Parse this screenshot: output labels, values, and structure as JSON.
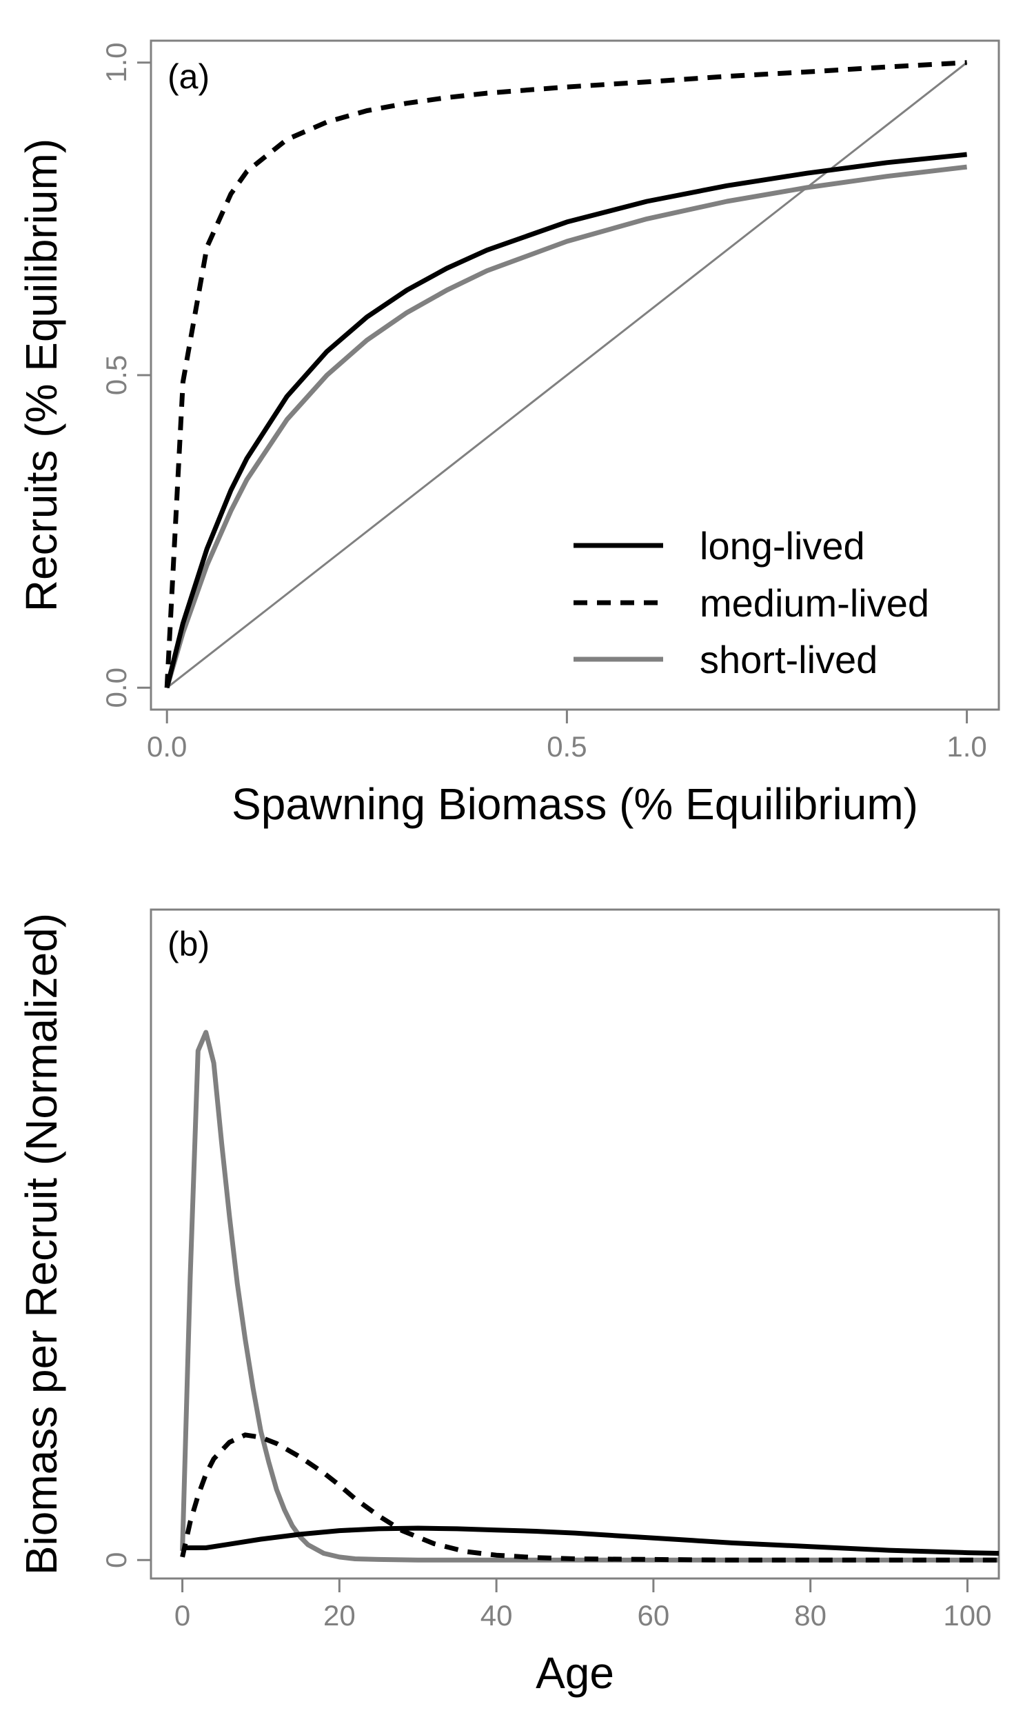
{
  "chart_data": [
    {
      "panel": "(a)",
      "type": "line",
      "xlabel": "Spawning Biomass (% Equilibrium)",
      "ylabel": "Recruits (% Equilibrium)",
      "xlim": [
        -0.02,
        1.04
      ],
      "ylim": [
        -0.035,
        1.035
      ],
      "xticks": [
        0.0,
        0.5,
        1.0
      ],
      "xtick_labels": [
        "0.0",
        "0.5",
        "1.0"
      ],
      "yticks": [
        0.0,
        0.5,
        1.0
      ],
      "ytick_labels": [
        "0.0",
        "0.5",
        "1.0"
      ],
      "legend_position": "bottom-right",
      "series": [
        {
          "name": "long-lived",
          "color": "#000000",
          "style": "solid",
          "x": [
            0,
            0.02,
            0.05,
            0.08,
            0.1,
            0.15,
            0.2,
            0.25,
            0.3,
            0.35,
            0.4,
            0.5,
            0.6,
            0.7,
            0.8,
            0.9,
            1.0
          ],
          "y": [
            0,
            0.103,
            0.222,
            0.316,
            0.367,
            0.466,
            0.538,
            0.593,
            0.636,
            0.671,
            0.7,
            0.745,
            0.778,
            0.803,
            0.823,
            0.84,
            0.853
          ]
        },
        {
          "name": "medium-lived",
          "color": "#000000",
          "style": "dashed",
          "x": [
            0,
            0.02,
            0.05,
            0.08,
            0.1,
            0.15,
            0.2,
            0.25,
            0.3,
            0.35,
            0.4,
            0.5,
            0.6,
            0.7,
            0.8,
            0.9,
            1.0
          ],
          "y": [
            0,
            0.489,
            0.705,
            0.79,
            0.826,
            0.877,
            0.905,
            0.923,
            0.935,
            0.944,
            0.951,
            0.961,
            0.969,
            0.978,
            0.985,
            0.993,
            1.0
          ]
        },
        {
          "name": "short-lived",
          "color": "#808080",
          "style": "solid",
          "x": [
            0,
            0.02,
            0.05,
            0.08,
            0.1,
            0.15,
            0.2,
            0.25,
            0.3,
            0.35,
            0.4,
            0.5,
            0.6,
            0.7,
            0.8,
            0.9,
            1.0
          ],
          "y": [
            0,
            0.088,
            0.196,
            0.283,
            0.333,
            0.429,
            0.5,
            0.556,
            0.6,
            0.636,
            0.667,
            0.714,
            0.75,
            0.778,
            0.8,
            0.818,
            0.833
          ]
        },
        {
          "name": "",
          "color": "#808080",
          "style": "thin",
          "x": [
            0,
            1.0
          ],
          "y": [
            0,
            1.0
          ]
        }
      ]
    },
    {
      "panel": "(b)",
      "type": "line",
      "xlabel": "Age",
      "ylabel": "Biomass per Recruit (Normalized)",
      "xlim": [
        -4,
        104
      ],
      "ylim": [
        -0.3,
        10.6
      ],
      "xticks": [
        0,
        20,
        40,
        60,
        80,
        100
      ],
      "xtick_labels": [
        "0",
        "20",
        "40",
        "60",
        "80",
        "100"
      ],
      "yticks": [
        0
      ],
      "ytick_labels": [
        "0"
      ],
      "series": [
        {
          "name": "long-lived",
          "color": "#000000",
          "style": "solid",
          "x": [
            0,
            1,
            3,
            6,
            10,
            15,
            20,
            25,
            30,
            35,
            40,
            45,
            50,
            55,
            60,
            65,
            70,
            80,
            90,
            100,
            104
          ],
          "y": [
            0.2,
            0.2,
            0.2,
            0.26,
            0.34,
            0.42,
            0.48,
            0.51,
            0.52,
            0.51,
            0.49,
            0.47,
            0.44,
            0.4,
            0.36,
            0.32,
            0.28,
            0.22,
            0.16,
            0.12,
            0.11
          ]
        },
        {
          "name": "medium-lived",
          "color": "#000000",
          "style": "dashed",
          "x": [
            0,
            1,
            2,
            3,
            4,
            6,
            8,
            10,
            12,
            15,
            18,
            20,
            22,
            25,
            28,
            32,
            36,
            40,
            45,
            50,
            60,
            70,
            80,
            90,
            104
          ],
          "y": [
            0.05,
            0.62,
            1.05,
            1.4,
            1.65,
            1.92,
            2.04,
            2.0,
            1.9,
            1.68,
            1.42,
            1.22,
            1.0,
            0.72,
            0.48,
            0.27,
            0.14,
            0.08,
            0.04,
            0.02,
            0.01,
            0,
            0,
            0,
            0
          ]
        },
        {
          "name": "short-lived",
          "color": "#808080",
          "style": "solid",
          "x": [
            0,
            1,
            2,
            3,
            4,
            5,
            6,
            7,
            8,
            9,
            10,
            11,
            12,
            13,
            14,
            15,
            16,
            18,
            20,
            22,
            25,
            30,
            40,
            104
          ],
          "y": [
            0.15,
            4.6,
            8.3,
            8.6,
            8.1,
            6.8,
            5.6,
            4.5,
            3.6,
            2.8,
            2.1,
            1.6,
            1.15,
            0.82,
            0.56,
            0.38,
            0.25,
            0.11,
            0.05,
            0.02,
            0.01,
            0,
            0,
            0
          ]
        }
      ]
    }
  ]
}
